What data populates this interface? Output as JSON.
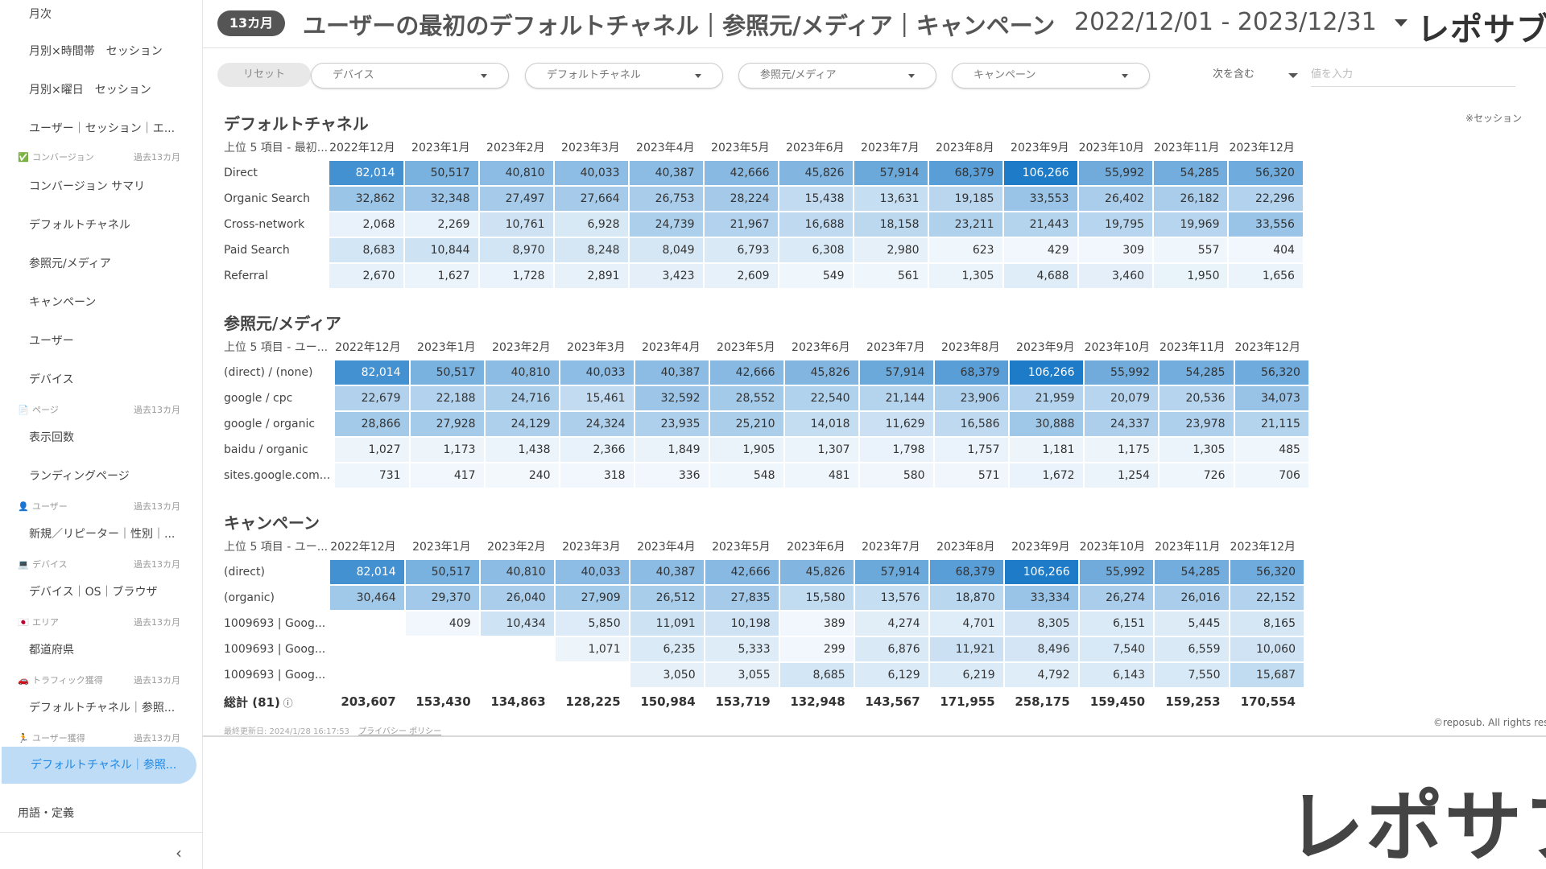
{
  "sidebar": {
    "rows": [
      {
        "kind": "item",
        "label": "月次"
      },
      {
        "kind": "item",
        "label": "月別×時間帯　セッション"
      },
      {
        "kind": "item",
        "label": "月別×曜日　セッション"
      },
      {
        "kind": "item",
        "label": "ユーザー｜セッション｜エ..."
      },
      {
        "kind": "section",
        "icon": "✅",
        "icon_name": "check-box-icon",
        "label": "コンバージョン",
        "right": "過去13カ月"
      },
      {
        "kind": "item",
        "label": "コンバージョン サマリ"
      },
      {
        "kind": "item",
        "label": "デフォルトチャネル"
      },
      {
        "kind": "item",
        "label": "参照元/メディア"
      },
      {
        "kind": "item",
        "label": "キャンペーン"
      },
      {
        "kind": "item",
        "label": "ユーザー"
      },
      {
        "kind": "item",
        "label": "デバイス"
      },
      {
        "kind": "section",
        "icon": "📄",
        "icon_name": "page-icon",
        "label": "ページ",
        "right": "過去13カ月"
      },
      {
        "kind": "item",
        "label": "表示回数"
      },
      {
        "kind": "item",
        "label": "ランディングページ"
      },
      {
        "kind": "section",
        "icon": "👤",
        "icon_name": "user-icon",
        "label": "ユーザー",
        "right": "過去13カ月"
      },
      {
        "kind": "item",
        "label": "新規／リピーター｜性別｜..."
      },
      {
        "kind": "section",
        "icon": "💻",
        "icon_name": "laptop-icon",
        "label": "デバイス",
        "right": "過去13カ月"
      },
      {
        "kind": "item",
        "label": "デバイス｜OS｜ブラウザ"
      },
      {
        "kind": "section",
        "icon": "🇯🇵",
        "icon_name": "japan-flag-icon",
        "label": "エリア",
        "right": "過去13カ月"
      },
      {
        "kind": "item",
        "label": "都道府県"
      },
      {
        "kind": "section",
        "icon": "🚗",
        "icon_name": "car-icon",
        "label": "トラフィック獲得",
        "right": "過去13カ月"
      },
      {
        "kind": "item",
        "label": "デフォルトチャネル｜参照..."
      },
      {
        "kind": "section",
        "icon": "🏃",
        "icon_name": "runner-icon",
        "label": "ユーザー獲得",
        "right": "過去13カ月"
      },
      {
        "kind": "active",
        "label": "デフォルトチャネル｜参照..."
      }
    ],
    "glossary": "用語・定義",
    "collapse": "‹"
  },
  "header": {
    "period_badge": "13カ月",
    "title": "ユーザーの最初のデフォルトチャネル｜参照元/メディア｜キャンペーン",
    "date_range": "2022/12/01 - 2023/12/31",
    "logo": "レポサブ"
  },
  "filters": {
    "reset": "リセット",
    "dropdowns": [
      "デバイス",
      "デフォルトチャネル",
      "参照元/メディア",
      "キャンペーン"
    ],
    "match": "次を含む",
    "value_placeholder": "値を入力"
  },
  "metric_note": "※セッション",
  "months": [
    "2022年12月",
    "2023年1月",
    "2023年2月",
    "2023年3月",
    "2023年4月",
    "2023年5月",
    "2023年6月",
    "2023年7月",
    "2023年8月",
    "2023年9月",
    "2023年10月",
    "2023年11月",
    "2023年12月"
  ],
  "tables": [
    {
      "title": "デフォルトチャネル",
      "row_header": "上位 5 項目 - 最初...",
      "rows": [
        {
          "label": "Direct",
          "values": [
            82014,
            50517,
            40810,
            40033,
            40387,
            42666,
            45826,
            57914,
            68379,
            106266,
            55992,
            54285,
            56320
          ]
        },
        {
          "label": "Organic Search",
          "values": [
            32862,
            32348,
            27497,
            27664,
            26753,
            28224,
            15438,
            13631,
            19185,
            33553,
            26402,
            26182,
            22296
          ]
        },
        {
          "label": "Cross-network",
          "values": [
            2068,
            2269,
            10761,
            6928,
            24739,
            21967,
            16688,
            18158,
            23211,
            21443,
            19795,
            19969,
            33556
          ]
        },
        {
          "label": "Paid Search",
          "values": [
            8683,
            10844,
            8970,
            8248,
            8049,
            6793,
            6308,
            2980,
            623,
            429,
            309,
            557,
            404
          ]
        },
        {
          "label": "Referral",
          "values": [
            2670,
            1627,
            1728,
            2891,
            3423,
            2609,
            549,
            561,
            1305,
            4688,
            3460,
            1950,
            1656
          ]
        }
      ]
    },
    {
      "title": "参照元/メディア",
      "row_header": "上位 5 項目 - ユー...",
      "rows": [
        {
          "label": "(direct) / (none)",
          "values": [
            82014,
            50517,
            40810,
            40033,
            40387,
            42666,
            45826,
            57914,
            68379,
            106266,
            55992,
            54285,
            56320
          ]
        },
        {
          "label": "google / cpc",
          "values": [
            22679,
            22188,
            24716,
            15461,
            32592,
            28552,
            22540,
            21144,
            23906,
            21959,
            20079,
            20536,
            34073
          ]
        },
        {
          "label": "google / organic",
          "values": [
            28866,
            27928,
            24129,
            24324,
            23935,
            25210,
            14018,
            11629,
            16586,
            30888,
            24337,
            23978,
            21115
          ]
        },
        {
          "label": "baidu / organic",
          "values": [
            1027,
            1173,
            1438,
            2366,
            1849,
            1905,
            1307,
            1798,
            1757,
            1181,
            1175,
            1305,
            485
          ]
        },
        {
          "label": "sites.google.com...",
          "values": [
            731,
            417,
            240,
            318,
            336,
            548,
            481,
            580,
            571,
            1672,
            1254,
            726,
            706
          ]
        }
      ]
    },
    {
      "title": "キャンペーン",
      "row_header": "上位 5 項目 - ユー...",
      "rows": [
        {
          "label": "(direct)",
          "values": [
            82014,
            50517,
            40810,
            40033,
            40387,
            42666,
            45826,
            57914,
            68379,
            106266,
            55992,
            54285,
            56320
          ]
        },
        {
          "label": "(organic)",
          "values": [
            30464,
            29370,
            26040,
            27909,
            26512,
            27835,
            15580,
            13576,
            18870,
            33334,
            26274,
            26016,
            22152
          ]
        },
        {
          "label": "1009693 | Goog...",
          "values": [
            null,
            409,
            10434,
            5850,
            11091,
            10198,
            389,
            4274,
            4701,
            8305,
            6151,
            5445,
            8165
          ]
        },
        {
          "label": "1009693 | Goog...",
          "values": [
            null,
            null,
            null,
            1071,
            6235,
            5333,
            299,
            6876,
            11921,
            8496,
            7540,
            6559,
            10060
          ]
        },
        {
          "label": "1009693 | Goog...",
          "values": [
            null,
            null,
            null,
            null,
            3050,
            3055,
            8685,
            6129,
            6219,
            4792,
            6143,
            7550,
            15687
          ]
        }
      ],
      "total_label": "総計 (81)",
      "totals": [
        203607,
        153430,
        134863,
        128225,
        150984,
        153719,
        132948,
        143567,
        171955,
        258175,
        159450,
        159253,
        170554
      ]
    }
  ],
  "footer": {
    "updated": "最終更新日: 2024/1/28 16:17:53",
    "privacy": "プライバシー ポリシー",
    "copyright": "©reposub. All rights reserved."
  },
  "watermark_logo": "レポサブ",
  "colors": {
    "heat_high": "#1e7bc8",
    "heat_low": "#f4f9fd",
    "active_bg": "#bfdcf6",
    "active_text": "#1e88e5"
  }
}
